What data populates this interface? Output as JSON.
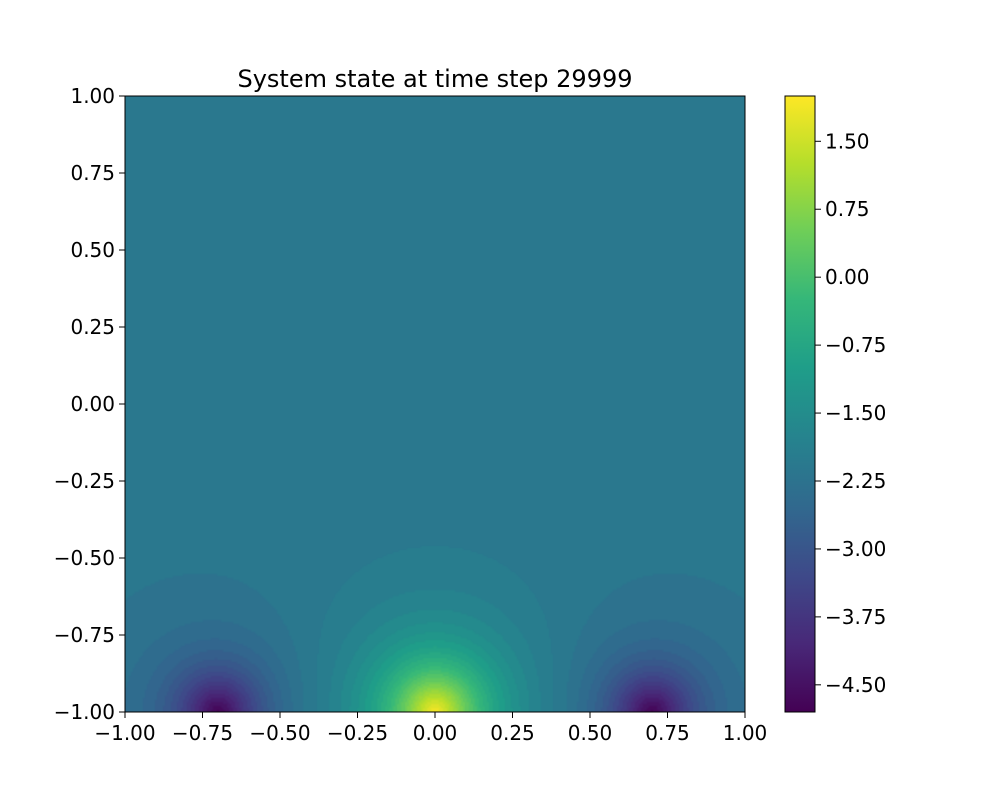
{
  "chart_data": {
    "type": "heatmap",
    "title": "System state at time step 29999",
    "xlabel": "",
    "ylabel": "",
    "xlim": [
      -1.0,
      1.0
    ],
    "ylim": [
      -1.0,
      1.0
    ],
    "x_ticks": [
      "−1.00",
      "−0.75",
      "−0.50",
      "−0.25",
      "0.00",
      "0.25",
      "0.50",
      "0.75",
      "1.00"
    ],
    "y_ticks": [
      "−1.00",
      "−0.75",
      "−0.50",
      "−0.25",
      "0.00",
      "0.25",
      "0.50",
      "0.75",
      "1.00"
    ],
    "colorbar": {
      "range": [
        -4.8,
        2.0
      ],
      "ticks": [
        "−4.50",
        "−3.75",
        "−3.00",
        "−2.25",
        "−1.50",
        "−0.75",
        "0.00",
        "0.75",
        "1.50"
      ],
      "colormap": "viridis"
    },
    "field": {
      "description_type": "filled-contour",
      "sources": [
        {
          "x": 0.0,
          "y": -1.0,
          "peak_value": 2.0
        },
        {
          "x": -0.7,
          "y": -1.0,
          "peak_value": -4.8
        },
        {
          "x": 0.7,
          "y": -1.0,
          "peak_value": -4.8
        }
      ],
      "background_value": -2.1
    },
    "grid": false
  }
}
